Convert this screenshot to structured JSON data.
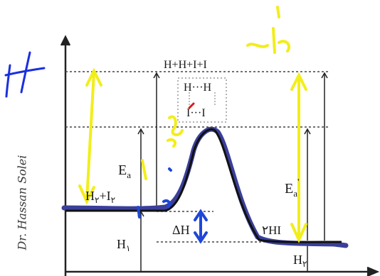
{
  "watermark": "Dr. Hassan Solei",
  "handwritten": {
    "letter_h": "H",
    "arabic_word": "ابری"
  },
  "labels": {
    "top": "H+H+I+I",
    "complex_top": "H···H",
    "complex_bottom": "I···I",
    "ea": "E",
    "ea_sub": "a",
    "ea_reverse": "E",
    "ea_reverse_sub": "a",
    "ea_reverse_prime": "'",
    "reactants": "H",
    "reactants_sub": "۲",
    "reactants_plus": "+I",
    "reactants_sub2": "۲",
    "delta_h": "ΔH",
    "product": "۲HI",
    "h1": "H",
    "h1_sub": "۱",
    "h2": "H",
    "h2_sub": "۲"
  },
  "colors": {
    "axis": "#222222",
    "curve_black": "#111111",
    "curve_blue": "#3a3f9a",
    "marker_yellow": "#f2ee1a",
    "marker_blue": "#1f46d8",
    "marker_red": "#e01818",
    "hand_blue": "#1a2fe0"
  }
}
